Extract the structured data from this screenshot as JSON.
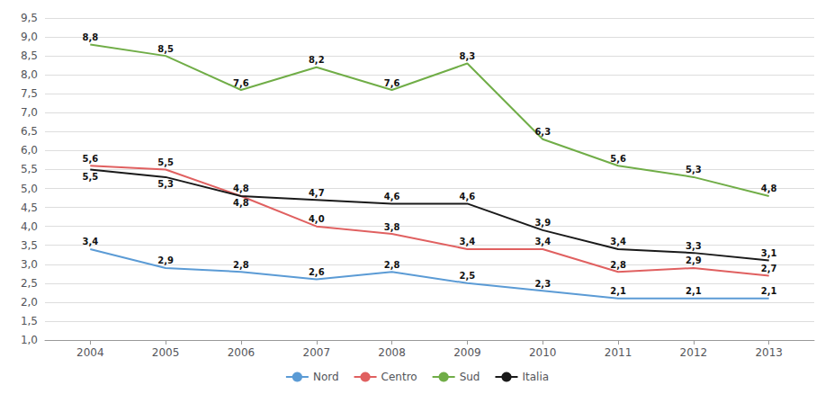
{
  "chart_data": {
    "type": "line",
    "x": [
      2004,
      2005,
      2006,
      2007,
      2008,
      2009,
      2010,
      2011,
      2012,
      2013
    ],
    "xlim": [
      2003.4,
      2013.6
    ],
    "xticks": [
      2004,
      2005,
      2006,
      2007,
      2008,
      2009,
      2010,
      2011,
      2012,
      2013
    ],
    "ylim": [
      1.0,
      9.5
    ],
    "yticks": [
      {
        "value": 1.0,
        "label": "1,0"
      },
      {
        "value": 1.5,
        "label": "1,5"
      },
      {
        "value": 2.0,
        "label": "2,0"
      },
      {
        "value": 2.5,
        "label": "2,5"
      },
      {
        "value": 3.0,
        "label": "3,0"
      },
      {
        "value": 3.5,
        "label": "3,5"
      },
      {
        "value": 4.0,
        "label": "4,0"
      },
      {
        "value": 4.5,
        "label": "4,5"
      },
      {
        "value": 5.0,
        "label": "5,0"
      },
      {
        "value": 5.5,
        "label": "5,5"
      },
      {
        "value": 6.0,
        "label": "6,0"
      },
      {
        "value": 6.5,
        "label": "6,5"
      },
      {
        "value": 7.0,
        "label": "7,0"
      },
      {
        "value": 7.5,
        "label": "7,5"
      },
      {
        "value": 8.0,
        "label": "8,0"
      },
      {
        "value": 8.5,
        "label": "8,5"
      },
      {
        "value": 9.0,
        "label": "9,0"
      },
      {
        "value": 9.5,
        "label": "9,5"
      }
    ],
    "grid": true,
    "legend": "bottom",
    "data_labels": true,
    "series": [
      {
        "name": "Nord",
        "color": "#5B9BD5",
        "values": [
          3.4,
          2.9,
          2.8,
          2.6,
          2.8,
          2.5,
          2.3,
          2.1,
          2.1,
          2.1
        ],
        "value_labels": [
          "3,4",
          "2,9",
          "2,8",
          "2,6",
          "2,8",
          "2,5",
          "2,3",
          "2,1",
          "2,1",
          "2,1"
        ]
      },
      {
        "name": "Centro",
        "color": "#E06060",
        "values": [
          5.6,
          5.5,
          4.8,
          4.0,
          3.8,
          3.4,
          3.4,
          2.8,
          2.9,
          2.7
        ],
        "value_labels": [
          "5,6",
          "5,5",
          "4,8",
          "4,0",
          "3,8",
          "3,4",
          "3,4",
          "2,8",
          "2,9",
          "2,7"
        ]
      },
      {
        "name": "Sud",
        "color": "#70AD47",
        "values": [
          8.8,
          8.5,
          7.6,
          8.2,
          7.6,
          8.3,
          6.3,
          5.6,
          5.3,
          4.8
        ],
        "value_labels": [
          "8,8",
          "8,5",
          "7,6",
          "8,2",
          "7,6",
          "8,3",
          "6,3",
          "5,6",
          "5,3",
          "4,8"
        ]
      },
      {
        "name": "Italia",
        "color": "#1A1A1A",
        "values": [
          5.5,
          5.3,
          4.8,
          4.7,
          4.6,
          4.6,
          3.9,
          3.4,
          3.3,
          3.1
        ],
        "value_labels": [
          "5,5",
          "5,3",
          "4,8",
          "4,7",
          "4,6",
          "4,6",
          "3,9",
          "3,4",
          "3,3",
          "3,1"
        ]
      }
    ]
  }
}
